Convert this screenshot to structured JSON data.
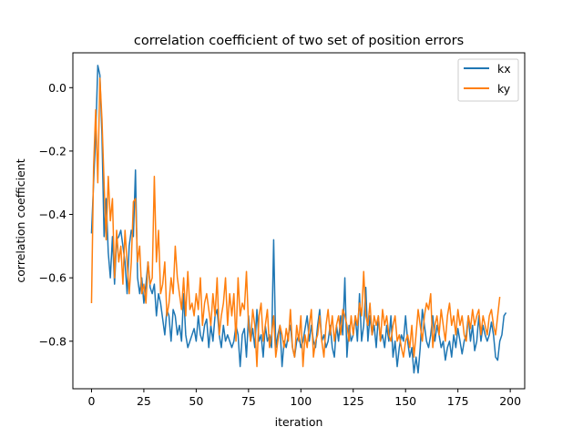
{
  "chart_data": {
    "type": "line",
    "title": "correlation coefficient of two set of position errors",
    "xlabel": "iteration",
    "ylabel": "correlation coefficient",
    "xlim": [
      -8.9,
      206.9
    ],
    "ylim": [
      -0.95,
      0.11
    ],
    "xticks": [
      0,
      25,
      50,
      75,
      100,
      125,
      150,
      175,
      200
    ],
    "yticks": [
      0.0,
      -0.2,
      -0.4,
      -0.6,
      -0.8
    ],
    "ytick_labels": [
      "0.0",
      "−0.2",
      "−0.4",
      "−0.6",
      "−0.8"
    ],
    "grid": false,
    "legend_position": "top-right",
    "series": [
      {
        "name": "kx",
        "color": "#1f77b4",
        "values": [
          -0.46,
          -0.3,
          -0.15,
          0.07,
          0.04,
          -0.15,
          -0.47,
          -0.35,
          -0.52,
          -0.6,
          -0.47,
          -0.62,
          -0.48,
          -0.47,
          -0.45,
          -0.5,
          -0.55,
          -0.65,
          -0.5,
          -0.45,
          -0.47,
          -0.26,
          -0.6,
          -0.65,
          -0.6,
          -0.68,
          -0.62,
          -0.55,
          -0.63,
          -0.65,
          -0.62,
          -0.72,
          -0.65,
          -0.68,
          -0.73,
          -0.78,
          -0.7,
          -0.72,
          -0.8,
          -0.7,
          -0.72,
          -0.78,
          -0.75,
          -0.8,
          -0.65,
          -0.78,
          -0.82,
          -0.8,
          -0.78,
          -0.76,
          -0.8,
          -0.72,
          -0.78,
          -0.8,
          -0.75,
          -0.73,
          -0.82,
          -0.75,
          -0.8,
          -0.72,
          -0.7,
          -0.78,
          -0.82,
          -0.75,
          -0.8,
          -0.78,
          -0.8,
          -0.82,
          -0.8,
          -0.75,
          -0.78,
          -0.88,
          -0.78,
          -0.76,
          -0.85,
          -0.72,
          -0.8,
          -0.76,
          -0.82,
          -0.7,
          -0.8,
          -0.78,
          -0.85,
          -0.75,
          -0.8,
          -0.78,
          -0.82,
          -0.48,
          -0.82,
          -0.78,
          -0.75,
          -0.88,
          -0.8,
          -0.82,
          -0.78,
          -0.75,
          -0.82,
          -0.85,
          -0.8,
          -0.78,
          -0.82,
          -0.8,
          -0.76,
          -0.72,
          -0.8,
          -0.75,
          -0.8,
          -0.82,
          -0.75,
          -0.7,
          -0.8,
          -0.78,
          -0.82,
          -0.8,
          -0.75,
          -0.82,
          -0.85,
          -0.75,
          -0.8,
          -0.72,
          -0.78,
          -0.6,
          -0.85,
          -0.75,
          -0.8,
          -0.78,
          -0.72,
          -0.8,
          -0.65,
          -0.8,
          -0.75,
          -0.63,
          -0.8,
          -0.72,
          -0.78,
          -0.75,
          -0.82,
          -0.72,
          -0.8,
          -0.78,
          -0.82,
          -0.75,
          -0.8,
          -0.72,
          -0.85,
          -0.8,
          -0.88,
          -0.82,
          -0.78,
          -0.8,
          -0.72,
          -0.8,
          -0.85,
          -0.82,
          -0.9,
          -0.85,
          -0.9,
          -0.82,
          -0.7,
          -0.75,
          -0.8,
          -0.82,
          -0.78,
          -0.72,
          -0.8,
          -0.75,
          -0.78,
          -0.82,
          -0.8,
          -0.86,
          -0.82,
          -0.8,
          -0.85,
          -0.78,
          -0.82,
          -0.76,
          -0.8,
          -0.84,
          -0.8,
          -0.78,
          -0.72,
          -0.8,
          -0.75,
          -0.83,
          -0.8,
          -0.72,
          -0.8,
          -0.75,
          -0.78,
          -0.8,
          -0.78,
          -0.74,
          -0.78,
          -0.85,
          -0.86,
          -0.8,
          -0.78,
          -0.72,
          -0.71
        ]
      },
      {
        "name": "ky",
        "color": "#ff7f0e",
        "values": [
          -0.68,
          -0.25,
          -0.07,
          -0.3,
          0.03,
          -0.1,
          -0.3,
          -0.48,
          -0.28,
          -0.42,
          -0.35,
          -0.6,
          -0.45,
          -0.55,
          -0.5,
          -0.62,
          -0.45,
          -0.55,
          -0.65,
          -0.55,
          -0.36,
          -0.35,
          -0.55,
          -0.5,
          -0.65,
          -0.62,
          -0.68,
          -0.55,
          -0.62,
          -0.6,
          -0.28,
          -0.55,
          -0.45,
          -0.65,
          -0.62,
          -0.55,
          -0.72,
          -0.68,
          -0.6,
          -0.65,
          -0.5,
          -0.6,
          -0.65,
          -0.7,
          -0.6,
          -0.72,
          -0.58,
          -0.7,
          -0.68,
          -0.72,
          -0.65,
          -0.7,
          -0.6,
          -0.75,
          -0.68,
          -0.65,
          -0.7,
          -0.75,
          -0.65,
          -0.72,
          -0.6,
          -0.78,
          -0.72,
          -0.68,
          -0.6,
          -0.75,
          -0.65,
          -0.72,
          -0.65,
          -0.8,
          -0.6,
          -0.72,
          -0.68,
          -0.7,
          -0.58,
          -0.75,
          -0.8,
          -0.7,
          -0.75,
          -0.88,
          -0.72,
          -0.68,
          -0.8,
          -0.75,
          -0.7,
          -0.82,
          -0.78,
          -0.72,
          -0.85,
          -0.8,
          -0.75,
          -0.78,
          -0.82,
          -0.76,
          -0.8,
          -0.7,
          -0.82,
          -0.85,
          -0.75,
          -0.8,
          -0.72,
          -0.88,
          -0.78,
          -0.82,
          -0.75,
          -0.7,
          -0.85,
          -0.8,
          -0.78,
          -0.72,
          -0.8,
          -0.85,
          -0.75,
          -0.7,
          -0.78,
          -0.72,
          -0.8,
          -0.75,
          -0.72,
          -0.78,
          -0.7,
          -0.72,
          -0.75,
          -0.8,
          -0.72,
          -0.78,
          -0.72,
          -0.75,
          -0.68,
          -0.72,
          -0.58,
          -0.72,
          -0.75,
          -0.68,
          -0.78,
          -0.72,
          -0.75,
          -0.72,
          -0.8,
          -0.7,
          -0.75,
          -0.72,
          -0.78,
          -0.8,
          -0.75,
          -0.72,
          -0.8,
          -0.78,
          -0.82,
          -0.85,
          -0.8,
          -0.78,
          -0.82,
          -0.75,
          -0.85,
          -0.78,
          -0.7,
          -0.75,
          -0.8,
          -0.72,
          -0.68,
          -0.7,
          -0.65,
          -0.82,
          -0.75,
          -0.72,
          -0.78,
          -0.7,
          -0.75,
          -0.8,
          -0.72,
          -0.68,
          -0.75,
          -0.72,
          -0.78,
          -0.7,
          -0.75,
          -0.72,
          -0.78,
          -0.8,
          -0.72,
          -0.76,
          -0.7,
          -0.75,
          -0.72,
          -0.7,
          -0.78,
          -0.72,
          -0.75,
          -0.78,
          -0.72,
          -0.7,
          -0.75,
          -0.78,
          -0.72,
          -0.66
        ]
      }
    ]
  }
}
